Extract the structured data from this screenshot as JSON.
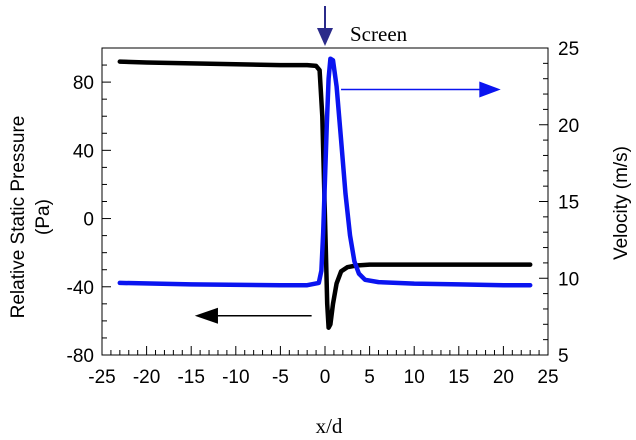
{
  "chart_data": {
    "type": "line",
    "title": "",
    "xlabel": "x/d",
    "ylabel_left_line1": "Relative Static Pressure",
    "ylabel_left_line2": "(Pa)",
    "ylabel_right": "Velocity (m/s)",
    "xlim": [
      -25,
      25
    ],
    "ylim_left": [
      -80,
      100
    ],
    "ylim_right": [
      5,
      25
    ],
    "x_ticks": [
      -25,
      -20,
      -15,
      -10,
      -5,
      0,
      5,
      10,
      15,
      20,
      25
    ],
    "x_tick_labels": [
      "-25",
      "-20",
      "-15",
      "-10",
      "-5",
      "0",
      "5",
      "10",
      "15",
      "20",
      "25"
    ],
    "y_left_ticks": [
      -80,
      -40,
      0,
      40,
      80
    ],
    "y_left_tick_labels": [
      "-80",
      "-40",
      "0",
      "40",
      "80"
    ],
    "y_right_ticks": [
      5,
      10,
      15,
      20,
      25
    ],
    "y_right_tick_labels": [
      "5",
      "10",
      "15",
      "20",
      "25"
    ],
    "grid": false,
    "annotations": {
      "screen_label": "Screen",
      "screen_x": 0
    },
    "series": [
      {
        "axis": "left",
        "color": "#000000",
        "points": [
          [
            -23,
            92
          ],
          [
            -20,
            91.5
          ],
          [
            -15,
            91
          ],
          [
            -10,
            90.5
          ],
          [
            -5,
            90
          ],
          [
            -2,
            90
          ],
          [
            -1,
            89.5
          ],
          [
            -0.6,
            87
          ],
          [
            -0.3,
            60
          ],
          [
            -0.1,
            20
          ],
          [
            0.1,
            -20
          ],
          [
            0.25,
            -50
          ],
          [
            0.4,
            -64
          ],
          [
            0.6,
            -62
          ],
          [
            0.9,
            -50
          ],
          [
            1.3,
            -38
          ],
          [
            1.8,
            -31
          ],
          [
            2.5,
            -28.5
          ],
          [
            3.5,
            -27.5
          ],
          [
            5,
            -27
          ],
          [
            10,
            -27
          ],
          [
            15,
            -27
          ],
          [
            20,
            -27
          ],
          [
            23,
            -27
          ]
        ]
      },
      {
        "axis": "right",
        "color": "#0a14f0",
        "points": [
          [
            -23,
            9.7
          ],
          [
            -15,
            9.6
          ],
          [
            -5,
            9.55
          ],
          [
            -2,
            9.55
          ],
          [
            -0.7,
            9.7
          ],
          [
            -0.4,
            10.5
          ],
          [
            -0.2,
            13
          ],
          [
            0,
            16.5
          ],
          [
            0.2,
            20
          ],
          [
            0.4,
            23
          ],
          [
            0.6,
            24.3
          ],
          [
            0.9,
            24.2
          ],
          [
            1.3,
            22.5
          ],
          [
            1.8,
            19
          ],
          [
            2.3,
            15.5
          ],
          [
            2.8,
            12.8
          ],
          [
            3.3,
            11.1
          ],
          [
            3.8,
            10.3
          ],
          [
            4.5,
            9.9
          ],
          [
            6,
            9.75
          ],
          [
            10,
            9.65
          ],
          [
            15,
            9.6
          ],
          [
            20,
            9.55
          ],
          [
            23,
            9.55
          ]
        ]
      }
    ],
    "colors": {
      "screen_arrow": "#2b2b8a",
      "velocity_arrow": "#0a14f0",
      "pressure_arrow": "#000000"
    }
  }
}
